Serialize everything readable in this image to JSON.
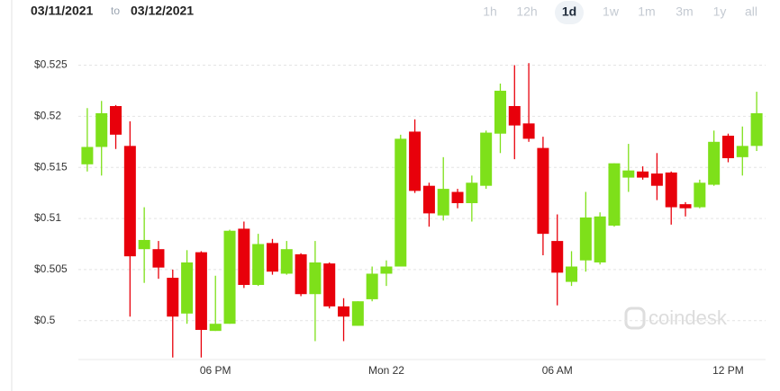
{
  "header": {
    "date_from": "03/11/2021",
    "to": "to",
    "date_to": "03/12/2021",
    "ranges": [
      {
        "label": "1h",
        "selected": false
      },
      {
        "label": "12h",
        "selected": false
      },
      {
        "label": "1d",
        "selected": true
      },
      {
        "label": "1w",
        "selected": false
      },
      {
        "label": "1m",
        "selected": false
      },
      {
        "label": "3m",
        "selected": false
      },
      {
        "label": "1y",
        "selected": false
      },
      {
        "label": "all",
        "selected": false
      }
    ]
  },
  "watermark": "coindesk",
  "chart_data": {
    "type": "candlestick",
    "categories": [
      null,
      null,
      null,
      null,
      null,
      null,
      null,
      null,
      null,
      "06 PM",
      null,
      null,
      null,
      null,
      null,
      null,
      null,
      null,
      null,
      null,
      null,
      "Mon 22",
      null,
      null,
      null,
      null,
      null,
      null,
      null,
      null,
      null,
      null,
      null,
      "06 AM",
      null,
      null,
      null,
      null,
      null,
      null,
      null,
      null,
      null,
      null,
      null,
      "12 PM",
      null,
      null
    ],
    "open": [
      0.5153,
      0.517,
      0.521,
      0.5171,
      0.507,
      0.507,
      0.5042,
      0.5007,
      0.5067,
      0.499,
      0.4997,
      0.509,
      0.5035,
      0.5076,
      0.5046,
      0.5065,
      0.5026,
      0.5056,
      0.5014,
      0.4995,
      0.5021,
      0.5046,
      0.5053,
      0.5185,
      0.5132,
      0.5103,
      0.5126,
      0.5115,
      0.5132,
      0.5183,
      0.521,
      0.5193,
      0.5169,
      0.5078,
      0.5038,
      0.5059,
      0.5057,
      0.5093,
      0.514,
      0.5146,
      0.5144,
      0.5145,
      0.5114,
      0.5111,
      0.5133,
      0.5181,
      0.516,
      0.5171
    ],
    "high": [
      0.5208,
      0.5215,
      0.5211,
      0.5195,
      0.5111,
      0.5078,
      0.505,
      0.5069,
      0.5068,
      0.5044,
      0.5089,
      0.5097,
      0.5085,
      0.508,
      0.5078,
      0.5066,
      0.5078,
      0.5057,
      0.5022,
      0.5019,
      0.5053,
      0.5059,
      0.5182,
      0.5197,
      0.5135,
      0.516,
      0.5129,
      0.5142,
      0.5186,
      0.5232,
      0.525,
      0.5252,
      0.518,
      0.5104,
      0.5068,
      0.5126,
      0.5106,
      0.5154,
      0.5173,
      0.5151,
      0.5164,
      0.5146,
      0.5116,
      0.5138,
      0.5186,
      0.5183,
      0.519,
      0.5224
    ],
    "low": [
      0.5146,
      0.5142,
      0.5168,
      0.5004,
      0.5037,
      0.5041,
      0.4964,
      0.4997,
      0.4964,
      0.499,
      0.4997,
      0.5032,
      0.5034,
      0.5045,
      0.5045,
      0.5024,
      0.498,
      0.5012,
      0.498,
      0.4995,
      0.5019,
      0.5034,
      0.5053,
      0.5125,
      0.5092,
      0.5098,
      0.511,
      0.5097,
      0.5129,
      0.5164,
      0.5158,
      0.5175,
      0.5064,
      0.5015,
      0.5034,
      0.5048,
      0.5055,
      0.5092,
      0.5126,
      0.5138,
      0.5118,
      0.5094,
      0.5102,
      0.511,
      0.5132,
      0.5155,
      0.5142,
      0.5166
    ],
    "close": [
      0.517,
      0.5203,
      0.5182,
      0.5063,
      0.5079,
      0.5052,
      0.5004,
      0.5057,
      0.4991,
      0.4997,
      0.5088,
      0.5035,
      0.5075,
      0.5048,
      0.507,
      0.5026,
      0.5057,
      0.5014,
      0.5004,
      0.5019,
      0.5046,
      0.5053,
      0.5178,
      0.5127,
      0.5105,
      0.5129,
      0.5115,
      0.5135,
      0.5184,
      0.5225,
      0.5191,
      0.5178,
      0.5085,
      0.5047,
      0.5053,
      0.5101,
      0.5102,
      0.5154,
      0.5147,
      0.514,
      0.5132,
      0.5111,
      0.511,
      0.5135,
      0.5175,
      0.5159,
      0.5171,
      0.5203
    ],
    "up_color": "#7ee01a",
    "down_color": "#e8000b",
    "ylim": [
      0.4962,
      0.5261
    ],
    "yticks": [
      {
        "value": 0.5,
        "label": "$0.5"
      },
      {
        "value": 0.505,
        "label": "$0.505"
      },
      {
        "value": 0.51,
        "label": "$0.51"
      },
      {
        "value": 0.515,
        "label": "$0.515"
      },
      {
        "value": 0.52,
        "label": "$0.52"
      },
      {
        "value": 0.525,
        "label": "$0.525"
      }
    ],
    "grid": true
  }
}
